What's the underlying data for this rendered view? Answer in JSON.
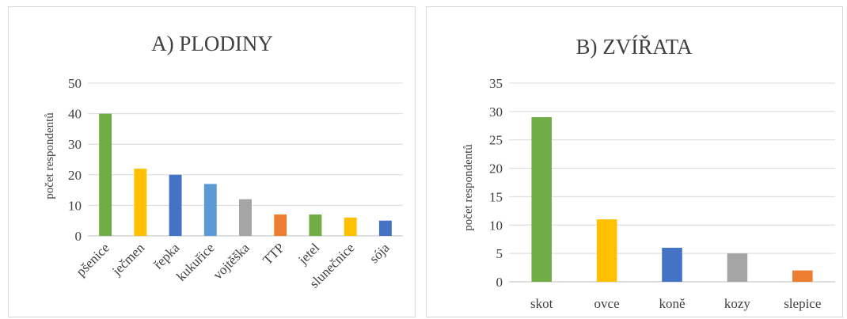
{
  "chart_data": [
    {
      "type": "bar",
      "title": "A) PLODINY",
      "ylabel": "počet respondentů",
      "xlabel": "",
      "ylim": [
        0,
        50
      ],
      "yticks": [
        0,
        10,
        20,
        30,
        40,
        50
      ],
      "grid": true,
      "categories": [
        "pšenice",
        "ječmen",
        "řepka",
        "kukuřice",
        "vojtěška",
        "TTP",
        "jetel",
        "slunečnice",
        "sója"
      ],
      "values": [
        40,
        22,
        20,
        17,
        12,
        7,
        7,
        6,
        5
      ],
      "colors": [
        "#70ad47",
        "#ffc000",
        "#4472c4",
        "#5b9bd5",
        "#a5a5a5",
        "#ed7d31",
        "#70ad47",
        "#ffc000",
        "#4472c4"
      ]
    },
    {
      "type": "bar",
      "title": "B) ZVÍŘATA",
      "ylabel": "počet respondentů",
      "xlabel": "",
      "ylim": [
        0,
        35
      ],
      "yticks": [
        0,
        5,
        10,
        15,
        20,
        25,
        30,
        35
      ],
      "grid": true,
      "categories": [
        "skot",
        "ovce",
        "koně",
        "kozy",
        "slepice"
      ],
      "values": [
        29,
        11,
        6,
        5,
        2
      ],
      "colors": [
        "#70ad47",
        "#ffc000",
        "#4472c4",
        "#a5a5a5",
        "#ed7d31"
      ]
    }
  ]
}
